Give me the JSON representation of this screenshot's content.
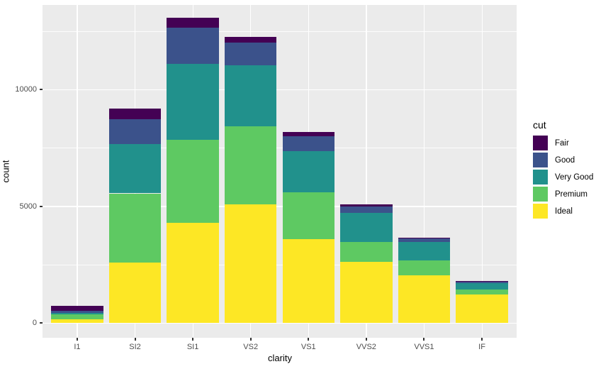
{
  "chart_data": {
    "type": "bar",
    "stacked": true,
    "stack_order": "first_series_on_top",
    "xlabel": "clarity",
    "ylabel": "count",
    "categories": [
      "I1",
      "SI2",
      "SI1",
      "VS2",
      "VS1",
      "VVS2",
      "VVS1",
      "IF"
    ],
    "series": [
      {
        "name": "Fair",
        "color": "#440154",
        "values": [
          210,
          466,
          408,
          261,
          170,
          69,
          17,
          9
        ]
      },
      {
        "name": "Good",
        "color": "#3B528B",
        "values": [
          96,
          1081,
          1560,
          978,
          648,
          286,
          186,
          71
        ]
      },
      {
        "name": "Very Good",
        "color": "#21918C",
        "values": [
          84,
          2100,
          3240,
          2591,
          1775,
          1235,
          789,
          268
        ]
      },
      {
        "name": "Premium",
        "color": "#5EC962",
        "values": [
          205,
          2949,
          3575,
          3357,
          1989,
          870,
          616,
          230
        ]
      },
      {
        "name": "Ideal",
        "color": "#FDE725",
        "values": [
          146,
          2598,
          4282,
          5071,
          3589,
          2606,
          2047,
          1212
        ]
      }
    ],
    "totals": [
      741,
      9194,
      13065,
      12258,
      8171,
      5066,
      3655,
      1790
    ],
    "y_major_ticks": [
      0,
      5000,
      10000
    ],
    "y_minor_ticks": [
      2500,
      7500,
      12500
    ],
    "ylim": [
      -653,
      13718
    ],
    "legend": {
      "title": "cut",
      "position": "right",
      "entries": [
        "Fair",
        "Good",
        "Very Good",
        "Premium",
        "Ideal"
      ]
    },
    "style": {
      "panel_background": "#EBEBEB",
      "gridline_color": "#FFFFFF",
      "tick_label_color": "#4D4D4D",
      "axis_title_color": "#000000"
    }
  }
}
